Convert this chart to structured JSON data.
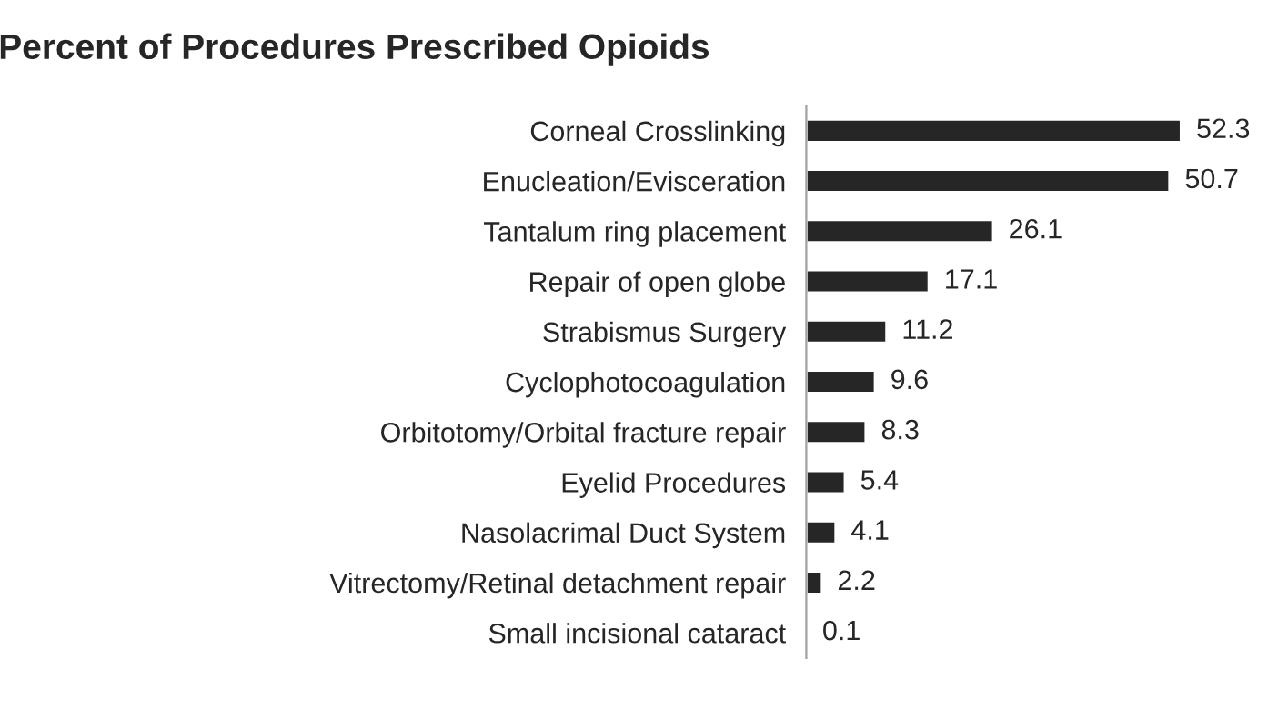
{
  "chart_data": {
    "type": "bar",
    "orientation": "horizontal",
    "title": "Percent of Procedures Prescribed Opioids",
    "categories": [
      "Corneal Crosslinking",
      "Enucleation/Evisceration",
      "Tantalum ring placement",
      "Repair of open globe",
      "Strabismus Surgery",
      "Cyclophotocoagulation",
      "Orbitotomy/Orbital fracture repair",
      "Eyelid Procedures",
      "Nasolacrimal Duct System",
      "Vitrectomy/Retinal detachment repair",
      "Small incisional cataract"
    ],
    "values": [
      52.3,
      50.7,
      26.1,
      17.1,
      11.2,
      9.6,
      8.3,
      5.4,
      4.1,
      2.2,
      0.1
    ],
    "color": "#262626",
    "data_labels": true,
    "grid": false,
    "legend": false
  }
}
